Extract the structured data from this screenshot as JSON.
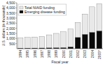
{
  "chart_data": {
    "type": "bar",
    "categories": [
      "1994",
      "1995",
      "1996",
      "1997",
      "1998",
      "1999",
      "2000",
      "2001",
      "2002",
      "2003",
      "2004",
      "2005*"
    ],
    "series": [
      {
        "name": "Total NIAID funding",
        "color": "#e8e8e8",
        "values": [
          1060,
          1110,
          1150,
          1200,
          1360,
          1500,
          1660,
          1930,
          2580,
          3400,
          4100,
          4400
        ]
      },
      {
        "name": "Emerging disease funding",
        "color": "#0a0a0a",
        "values": [
          47,
          55,
          62,
          70,
          82,
          90,
          100,
          170,
          1100,
          1400,
          1600,
          1740
        ]
      }
    ],
    "xlabel": "Fiscal year",
    "ylabel": "U.S. dollars (in thousands)",
    "ylim": [
      0,
      4500
    ],
    "yticks": [
      500,
      {
        "value": 1000,
        "label": "1,000"
      },
      {
        "value": 1500,
        "label": "1,500"
      },
      {
        "value": 2000,
        "label": "2,000"
      },
      {
        "value": 2500,
        "label": "2,500"
      },
      {
        "value": 3000,
        "label": "3,000"
      },
      {
        "value": 3500,
        "label": "3,500"
      },
      {
        "value": 4000,
        "label": "4,000"
      },
      {
        "value": 4500,
        "label": "4,500"
      }
    ],
    "legend": "upper left",
    "grid": false
  }
}
